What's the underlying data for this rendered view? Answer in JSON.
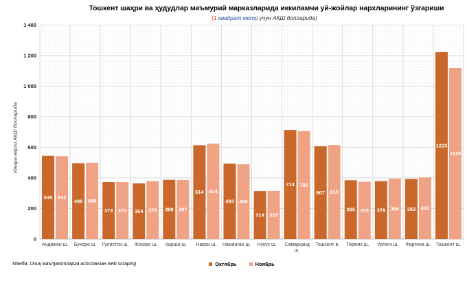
{
  "chart_data": {
    "type": "bar",
    "title": "Тошкент шаҳри ва ҳудудлар маъмурий марказларида иккиламчи уй-жойлар нархларининг ўзгариши",
    "subtitle_parts": {
      "red": "(1",
      "blue": " квадрат метр",
      "rest": " учун АҚШ долларида)"
    },
    "ylabel": "Ижара нархи АҚШ долларида",
    "categories": [
      "Андижон ш.",
      "Бухоро ш.",
      "Гулистон ш.",
      "Жиззах ш.",
      "Қарши ш.",
      "Навои ш.",
      "Наманган ш.",
      "Нукус ш.",
      "Самарқанд ш.",
      "Тошкент в.",
      "Термиз ш.",
      "Ургенч ш.",
      "Фарғона ш.",
      "Тошкент ш."
    ],
    "series": [
      {
        "name": "Октябрь",
        "color": "#c9682a",
        "values": [
          545,
          496,
          373,
          364,
          388,
          614,
          493,
          314,
          714,
          607,
          385,
          379,
          393,
          1223
        ]
      },
      {
        "name": "Ноябрь",
        "color": "#f0a284",
        "values": [
          542,
          499,
          373,
          378,
          387,
          624,
          489,
          315,
          706,
          615,
          375,
          395,
          403,
          1119
        ]
      }
    ],
    "ylim": [
      0,
      1400
    ],
    "ytick_step": 200,
    "grid": "major+minor",
    "legend_position": "bottom"
  },
  "footer": {
    "source": "Манба: Очиқ маълумотларга асосланган web scraping"
  }
}
